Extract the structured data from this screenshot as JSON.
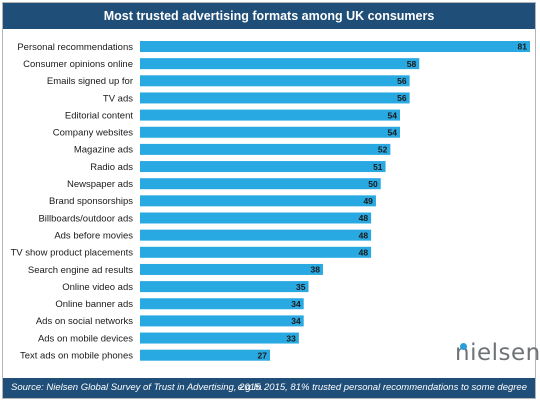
{
  "chart_data": {
    "type": "bar",
    "orientation": "horizontal",
    "title": "Most trusted advertising formats among UK consumers",
    "categories": [
      "Personal recommendations",
      "Consumer opinions online",
      "Emails signed up for",
      "TV ads",
      "Editorial content",
      "Company websites",
      "Magazine ads",
      "Radio ads",
      "Newspaper ads",
      "Brand sponsorships",
      "Billboards/outdoor ads",
      "Ads before movies",
      "TV show product placements",
      "Search engine ad results",
      "Online video ads",
      "Online banner ads",
      "Ads on social networks",
      "Ads on mobile devices",
      "Text ads on mobile phones"
    ],
    "values": [
      81,
      58,
      56,
      56,
      54,
      54,
      52,
      51,
      50,
      49,
      48,
      48,
      48,
      38,
      35,
      34,
      34,
      33,
      27
    ],
    "xlim": [
      0,
      81
    ],
    "grid": false,
    "data_labels": true
  },
  "footer": {
    "source": "Source: Nielsen Global Survey of Trust in Advertising, 2015.",
    "note": "e.g In 2015, 81% trusted personal recommendations to some degree"
  },
  "logo_text": "nielsen",
  "colors": {
    "bar": "#29a9e1",
    "header_background": "#1f4e78",
    "header_text": "#ffffff",
    "logo_dot": "#2a9fd6"
  }
}
